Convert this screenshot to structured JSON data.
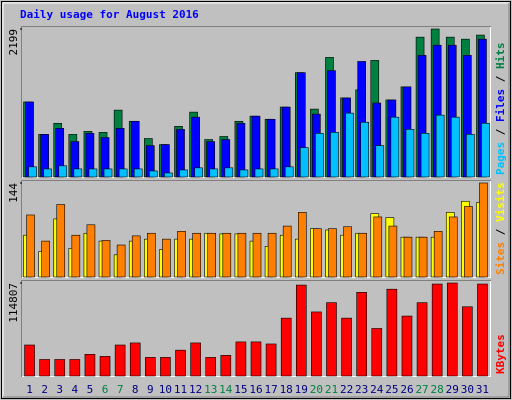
{
  "chart_data": [
    {
      "type": "bar",
      "title": "Daily usage for August 2016",
      "ylim": [
        0,
        2199
      ],
      "yticks": [
        2199
      ],
      "legend_separator": " / ",
      "series": [
        {
          "name": "Hits",
          "color": "#008040",
          "values": [
            1115,
            633,
            798,
            633,
            678,
            663,
            994,
            828,
            572,
            482,
            753,
            964,
            557,
            602,
            828,
            904,
            858,
            1039,
            1551,
            1009,
            1777,
            1175,
            1295,
            1732,
            1145,
            1340,
            2078,
            2199,
            2078,
            2048,
            2109
          ]
        },
        {
          "name": "Files",
          "color": "#0000ff",
          "values": [
            1115,
            633,
            723,
            527,
            648,
            587,
            723,
            828,
            467,
            482,
            708,
            889,
            527,
            557,
            798,
            904,
            858,
            1039,
            1551,
            934,
            1581,
            1175,
            1717,
            1099,
            1145,
            1340,
            1807,
            1958,
            1958,
            1807,
            2048
          ]
        },
        {
          "name": "Pages",
          "color": "#00c0ff",
          "values": [
            151,
            120,
            166,
            120,
            120,
            120,
            120,
            120,
            90,
            60,
            105,
            136,
            120,
            136,
            105,
            120,
            120,
            151,
            437,
            648,
            663,
            949,
            813,
            467,
            889,
            708,
            648,
            919,
            889,
            633,
            798
          ]
        }
      ]
    },
    {
      "type": "bar",
      "ylim": [
        0,
        144
      ],
      "yticks": [
        144
      ],
      "legend_separator": " / ",
      "series": [
        {
          "name": "Visits",
          "color": "#ffff00",
          "values": [
            64,
            39,
            89,
            44,
            67,
            55,
            34,
            55,
            58,
            42,
            58,
            58,
            67,
            66,
            66,
            55,
            47,
            64,
            58,
            74,
            72,
            64,
            67,
            97,
            91,
            61,
            61,
            61,
            99,
            116,
            114
          ]
        },
        {
          "name": "Sites",
          "color": "#ff8000",
          "values": [
            95,
            55,
            111,
            64,
            80,
            56,
            49,
            63,
            67,
            58,
            70,
            67,
            67,
            67,
            67,
            67,
            67,
            78,
            99,
            74,
            74,
            77,
            67,
            92,
            78,
            61,
            61,
            70,
            92,
            108,
            144
          ]
        }
      ]
    },
    {
      "type": "bar",
      "ylim": [
        0,
        114807
      ],
      "yticks": [
        114807
      ],
      "categories": [
        "1",
        "2",
        "3",
        "4",
        "5",
        "6",
        "7",
        "8",
        "9",
        "10",
        "11",
        "12",
        "13",
        "14",
        "15",
        "16",
        "17",
        "18",
        "19",
        "20",
        "21",
        "22",
        "23",
        "24",
        "25",
        "26",
        "27",
        "28",
        "29",
        "30",
        "31"
      ],
      "category_colors": [
        "#000080",
        "#000080",
        "#000080",
        "#000080",
        "#000080",
        "#008040",
        "#008040",
        "#000080",
        "#000080",
        "#000080",
        "#000080",
        "#000080",
        "#008040",
        "#008040",
        "#000080",
        "#000080",
        "#000080",
        "#000080",
        "#000080",
        "#008040",
        "#008040",
        "#000080",
        "#000080",
        "#000080",
        "#000080",
        "#000080",
        "#008040",
        "#008040",
        "#000080",
        "#000080",
        "#000080"
      ],
      "series": [
        {
          "name": "KBytes",
          "color": "#ff0000",
          "values": [
            38269,
            20410,
            20410,
            20410,
            26788,
            24237,
            38269,
            40820,
            22961,
            22961,
            31891,
            40820,
            22961,
            25513,
            42096,
            42096,
            39545,
            71435,
            112256,
            79090,
            90570,
            71435,
            103326,
            58679,
            107153,
            73987,
            90570,
            113531,
            114807,
            85468,
            113531
          ]
        }
      ]
    }
  ]
}
